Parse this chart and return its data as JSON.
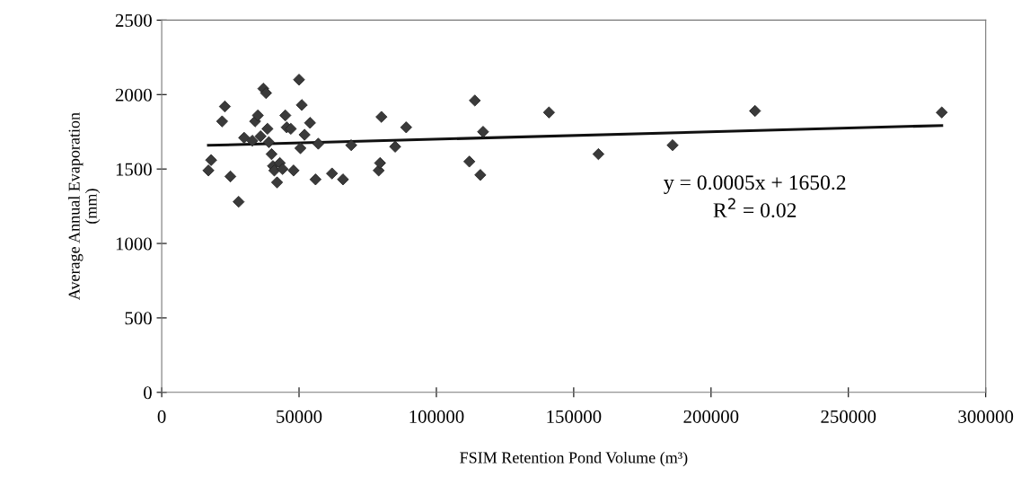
{
  "chart_data": {
    "type": "scatter",
    "xlabel": "FSIM Retention Pond Volume (m³)",
    "ylabel": "Average Annual Evaporation\n(mm)",
    "xlim": [
      0,
      300000
    ],
    "ylim": [
      0,
      2500
    ],
    "xticks": [
      0,
      50000,
      100000,
      150000,
      200000,
      250000,
      300000
    ],
    "yticks": [
      0,
      500,
      1000,
      1500,
      2000,
      2500
    ],
    "grid": false,
    "legend": false,
    "annotations": [
      "y = 0.0005x + 1650.2",
      "R$^{2}$ = 0.02"
    ],
    "series": [
      {
        "color": "#3a3a3a",
        "marker": "diamond",
        "x": [
          17000,
          18000,
          22000,
          23000,
          25000,
          28000,
          30000,
          33000,
          34000,
          35000,
          36000,
          37000,
          38000,
          38500,
          39000,
          40000,
          40500,
          41000,
          42000,
          43000,
          44000,
          45000,
          45500,
          47000,
          48000,
          50000,
          50500,
          51000,
          52000,
          54000,
          56000,
          57000,
          62000,
          66000,
          69000,
          79000,
          79500,
          80000,
          85000,
          89000,
          112000,
          114000,
          116000,
          117000,
          141000,
          159000,
          186000,
          216000,
          284000
        ],
        "values": [
          1490,
          1560,
          1820,
          1920,
          1450,
          1280,
          1710,
          1690,
          1820,
          1860,
          1720,
          2040,
          2010,
          1770,
          1680,
          1600,
          1520,
          1490,
          1410,
          1540,
          1500,
          1860,
          1780,
          1770,
          1490,
          2100,
          1640,
          1930,
          1730,
          1810,
          1430,
          1670,
          1470,
          1430,
          1660,
          1490,
          1540,
          1850,
          1650,
          1780,
          1550,
          1960,
          1460,
          1750,
          1880,
          1600,
          1660,
          1890,
          1880
        ]
      },
      {
        "type": "line",
        "color": "#111111",
        "marker": "none",
        "line_style": "solid",
        "x": [
          17000,
          284000
        ],
        "values": [
          1659,
          1792
        ]
      }
    ]
  }
}
